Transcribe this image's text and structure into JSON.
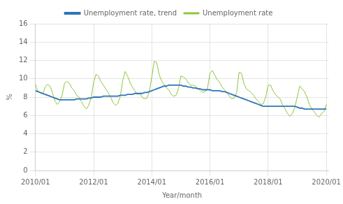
{
  "chart_data": {
    "type": "line",
    "xlabel": "Year/month",
    "ylabel": "%",
    "x": [
      2010,
      2010.0833333333333,
      2010.1666666666667,
      2010.25,
      2010.3333333333333,
      2010.4166666666667,
      2010.5,
      2010.5833333333333,
      2010.6666666666667,
      2010.75,
      2010.8333333333333,
      2010.9166666666667,
      2011,
      2011.0833333333333,
      2011.1666666666667,
      2011.25,
      2011.3333333333333,
      2011.4166666666667,
      2011.5,
      2011.5833333333333,
      2011.6666666666667,
      2011.75,
      2011.8333333333333,
      2011.9166666666667,
      2012,
      2012.0833333333333,
      2012.1666666666667,
      2012.25,
      2012.3333333333333,
      2012.4166666666667,
      2012.5,
      2012.5833333333333,
      2012.6666666666667,
      2012.75,
      2012.8333333333333,
      2012.9166666666667,
      2013,
      2013.0833333333333,
      2013.1666666666667,
      2013.25,
      2013.3333333333333,
      2013.4166666666667,
      2013.5,
      2013.5833333333333,
      2013.6666666666667,
      2013.75,
      2013.8333333333333,
      2013.9166666666667,
      2014,
      2014.0833333333333,
      2014.1666666666667,
      2014.25,
      2014.3333333333333,
      2014.4166666666667,
      2014.5,
      2014.5833333333333,
      2014.6666666666667,
      2014.75,
      2014.8333333333333,
      2014.9166666666667,
      2015,
      2015.0833333333333,
      2015.1666666666667,
      2015.25,
      2015.3333333333333,
      2015.4166666666667,
      2015.5,
      2015.5833333333333,
      2015.6666666666667,
      2015.75,
      2015.8333333333333,
      2015.9166666666667,
      2016,
      2016.0833333333333,
      2016.1666666666667,
      2016.25,
      2016.3333333333333,
      2016.4166666666667,
      2016.5,
      2016.5833333333333,
      2016.6666666666667,
      2016.75,
      2016.8333333333333,
      2016.9166666666667,
      2017,
      2017.0833333333333,
      2017.1666666666667,
      2017.25,
      2017.3333333333333,
      2017.4166666666667,
      2017.5,
      2017.5833333333333,
      2017.6666666666667,
      2017.75,
      2017.8333333333333,
      2017.9166666666667,
      2018,
      2018.0833333333333,
      2018.1666666666667,
      2018.25,
      2018.3333333333333,
      2018.4166666666667,
      2018.5,
      2018.5833333333333,
      2018.6666666666667,
      2018.75,
      2018.8333333333333,
      2018.9166666666667,
      2019,
      2019.0833333333333,
      2019.1666666666667,
      2019.25,
      2019.3333333333333,
      2019.4166666666667,
      2019.5,
      2019.5833333333333,
      2019.6666666666667,
      2019.75,
      2019.8333333333333,
      2019.9166666666667,
      2020
    ],
    "series": [
      {
        "name": "Unemployment rate",
        "color": "#8dc63f",
        "values": [
          9.4,
          8.6,
          8.5,
          8.3,
          9.1,
          9.4,
          9.2,
          8.5,
          7.6,
          7.2,
          7.5,
          8.2,
          9.5,
          9.7,
          9.5,
          9.0,
          8.7,
          8.2,
          8.0,
          7.5,
          7.0,
          6.7,
          7.1,
          8.0,
          9.6,
          10.5,
          10.3,
          9.7,
          9.3,
          8.9,
          8.5,
          8.0,
          7.4,
          7.1,
          7.3,
          8.1,
          9.8,
          10.8,
          10.3,
          9.6,
          9.1,
          8.7,
          8.3,
          8.4,
          8.0,
          7.8,
          7.9,
          8.6,
          10.2,
          11.9,
          11.8,
          10.5,
          9.8,
          9.4,
          9.0,
          8.8,
          8.3,
          8.1,
          8.2,
          8.9,
          10.3,
          10.2,
          10.0,
          9.6,
          9.3,
          9.3,
          9.2,
          9.0,
          8.7,
          8.5,
          8.6,
          9.0,
          10.6,
          10.9,
          10.4,
          9.9,
          9.6,
          9.1,
          8.8,
          8.5,
          8.1,
          7.8,
          7.9,
          8.5,
          10.7,
          10.6,
          9.5,
          8.9,
          8.7,
          8.5,
          8.2,
          7.8,
          7.5,
          7.2,
          7.3,
          8.0,
          9.3,
          9.3,
          8.7,
          8.3,
          8.0,
          7.8,
          7.1,
          6.7,
          6.2,
          5.9,
          6.2,
          6.9,
          8.0,
          9.2,
          8.9,
          8.6,
          8.0,
          7.2,
          6.7,
          6.4,
          6.0,
          5.8,
          6.2,
          6.4,
          7.2
        ]
      },
      {
        "name": "Unemployment rate, trend",
        "color": "#2e75b6",
        "values": [
          8.7,
          8.6,
          8.5,
          8.4,
          8.3,
          8.2,
          8.1,
          8.0,
          7.9,
          7.8,
          7.7,
          7.7,
          7.7,
          7.7,
          7.7,
          7.7,
          7.7,
          7.8,
          7.8,
          7.8,
          7.8,
          7.8,
          7.9,
          7.9,
          8.0,
          8.0,
          8.0,
          8.0,
          8.1,
          8.1,
          8.1,
          8.1,
          8.1,
          8.1,
          8.1,
          8.2,
          8.2,
          8.2,
          8.3,
          8.3,
          8.3,
          8.4,
          8.4,
          8.4,
          8.4,
          8.5,
          8.5,
          8.6,
          8.7,
          8.8,
          8.9,
          9.0,
          9.1,
          9.2,
          9.2,
          9.3,
          9.3,
          9.3,
          9.3,
          9.3,
          9.3,
          9.2,
          9.2,
          9.1,
          9.1,
          9.0,
          9.0,
          8.9,
          8.9,
          8.8,
          8.8,
          8.8,
          8.8,
          8.7,
          8.7,
          8.7,
          8.7,
          8.6,
          8.6,
          8.5,
          8.4,
          8.3,
          8.2,
          8.1,
          8.0,
          7.9,
          7.8,
          7.7,
          7.6,
          7.5,
          7.4,
          7.3,
          7.2,
          7.1,
          7.0,
          7.0,
          7.0,
          7.0,
          7.0,
          7.0,
          7.0,
          7.0,
          7.0,
          7.0,
          7.0,
          7.0,
          7.0,
          7.0,
          6.9,
          6.8,
          6.8,
          6.7,
          6.7,
          6.7,
          6.7,
          6.7,
          6.7,
          6.7,
          6.7,
          6.7,
          6.7
        ]
      }
    ],
    "xlim": [
      2010,
      2020.0833333333333
    ],
    "xticks": [
      {
        "value": 2010,
        "label": "2010/01"
      },
      {
        "value": 2012,
        "label": "2012/01"
      },
      {
        "value": 2014,
        "label": "2014/01"
      },
      {
        "value": 2016,
        "label": "2016/01"
      },
      {
        "value": 2018,
        "label": "2018/01"
      },
      {
        "value": 2020,
        "label": "2020/01"
      }
    ],
    "ylim": [
      0,
      16
    ],
    "yticks": [
      0,
      2,
      4,
      6,
      8,
      10,
      12,
      14,
      16
    ],
    "grid": true,
    "legend": "top"
  }
}
